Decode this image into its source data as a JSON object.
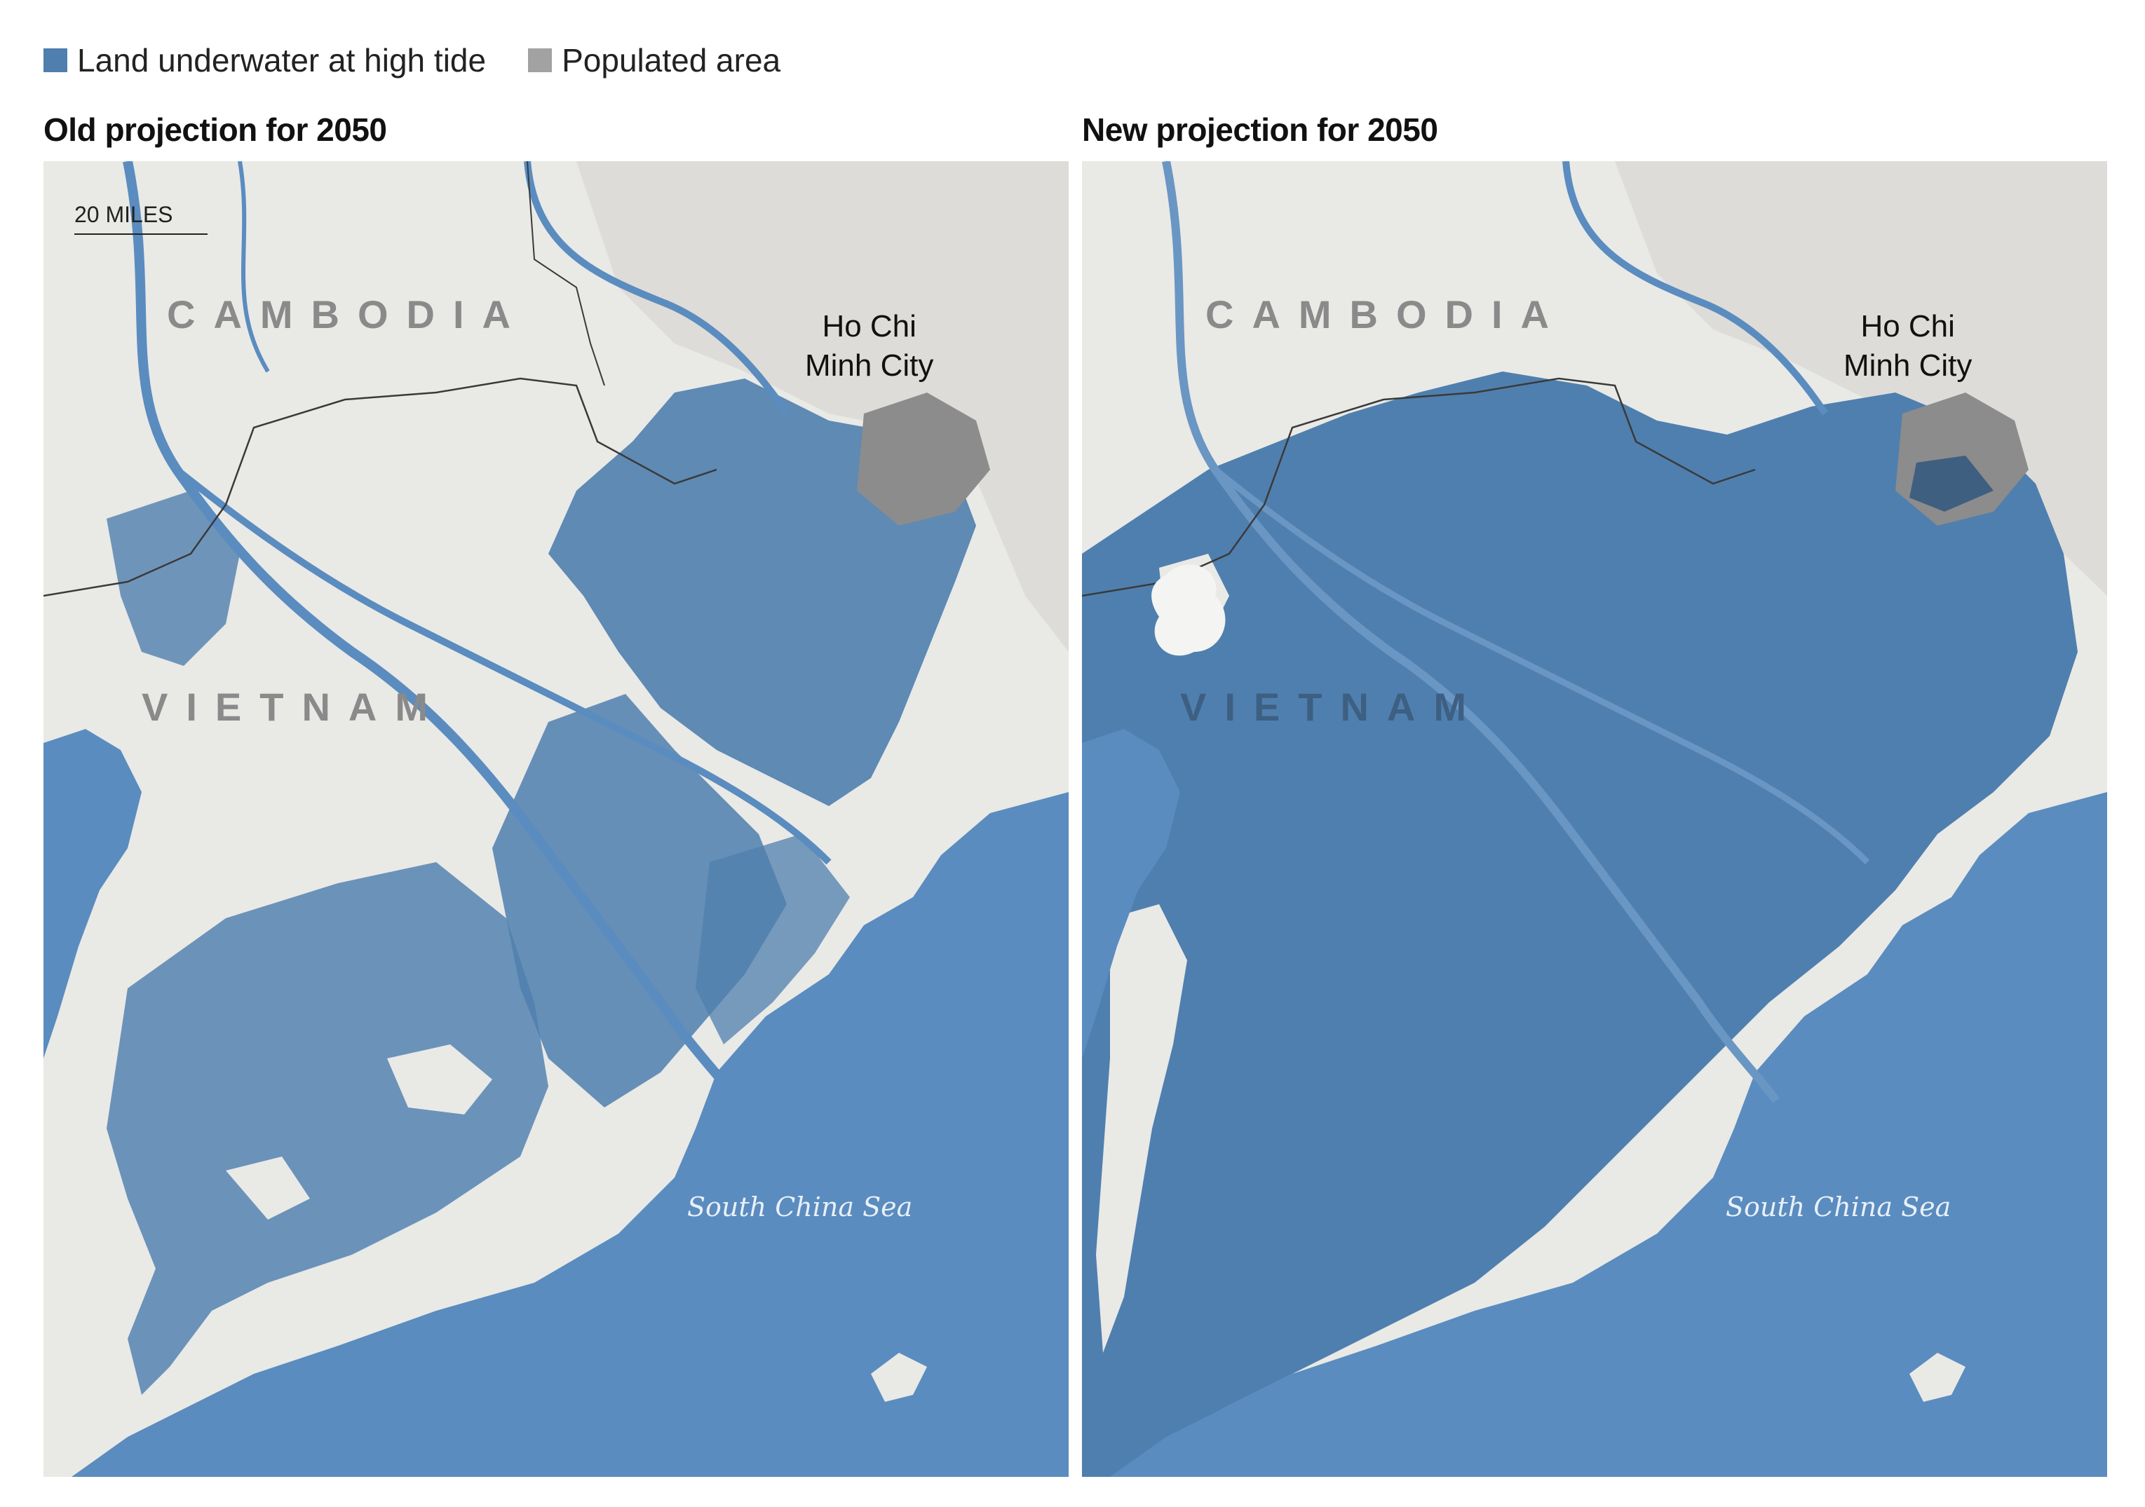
{
  "legend": [
    {
      "label": "Land underwater at high tide",
      "color": "#4f7fae"
    },
    {
      "label": "Populated area",
      "color": "#a2a2a2"
    }
  ],
  "colors": {
    "sea": "#5a8cbf",
    "flood": "#4f7fae",
    "land": "#e9e9e6",
    "upland": "#dcdcd8",
    "river": "#5a8cbf",
    "border": "#3a3a3a",
    "city": "#8c8c8c"
  },
  "maps": [
    {
      "title": "Old projection for 2050",
      "scale_label": "20 MILES",
      "country_labels": [
        "CAMBODIA",
        "VIETNAM"
      ],
      "city_label": "Ho Chi\nMinh City",
      "sea_label": "South China Sea"
    },
    {
      "title": "New projection for 2050",
      "country_labels": [
        "CAMBODIA",
        "VIETNAM"
      ],
      "city_label": "Ho Chi\nMinh City",
      "sea_label": "South China Sea"
    }
  ]
}
